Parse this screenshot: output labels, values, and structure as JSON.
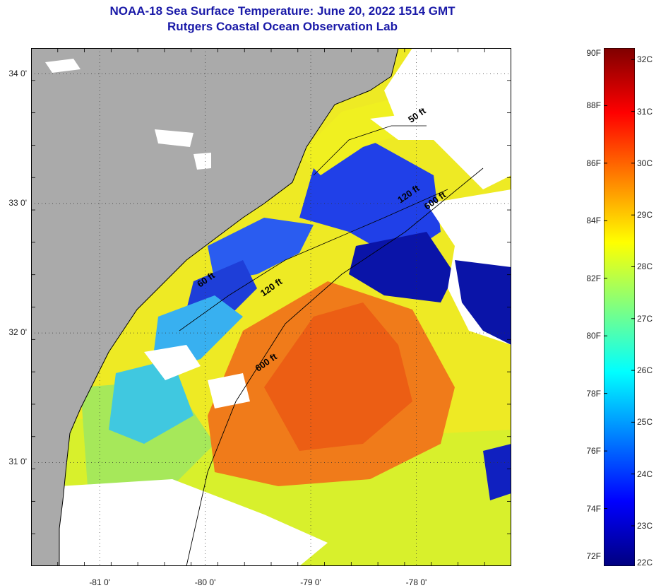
{
  "title": {
    "line1": "NOAA-18 Sea Surface Temperature:  June 20, 2022 1514 GMT",
    "line2": "Rutgers Coastal Ocean Observation Lab"
  },
  "map": {
    "lat_ticks": [
      {
        "label": "34 0'",
        "lat": 34.0
      },
      {
        "label": "33 0'",
        "lat": 33.0
      },
      {
        "label": "32 0'",
        "lat": 32.0
      },
      {
        "label": "31 0'",
        "lat": 31.0
      }
    ],
    "lon_ticks": [
      {
        "label": "-81 0'",
        "lon": -81.0
      },
      {
        "label": "-80 0'",
        "lon": -80.0
      },
      {
        "label": "-79 0'",
        "lon": -79.0
      },
      {
        "label": "-78 0'",
        "lon": -78.0
      }
    ],
    "lat_range": [
      30.2,
      34.2
    ],
    "lon_range": [
      -81.65,
      -77.1
    ],
    "contour_labels": [
      {
        "text": "50 ft",
        "lon": -78.05,
        "lat": 33.62
      },
      {
        "text": "120 ft",
        "lon": -78.15,
        "lat": 33.0
      },
      {
        "text": "600 ft",
        "lon": -77.9,
        "lat": 32.95
      },
      {
        "text": "60 ft",
        "lon": -80.05,
        "lat": 32.35
      },
      {
        "text": "120 ft",
        "lon": -79.45,
        "lat": 32.28
      },
      {
        "text": "600 ft",
        "lon": -79.5,
        "lat": 31.7
      }
    ],
    "colors": {
      "land": "#aaaaaa",
      "cloud": "#ffffff",
      "coast": "#000000"
    }
  },
  "colorbar": {
    "fahrenheit_labels": [
      "90F",
      "88F",
      "86F",
      "84F",
      "82F",
      "80F",
      "78F",
      "76F",
      "74F",
      "72F"
    ],
    "fahrenheit_values": [
      90,
      88,
      86,
      84,
      82,
      80,
      78,
      76,
      74,
      72
    ],
    "celsius_labels": [
      "32C",
      "31C",
      "30C",
      "29C",
      "28C",
      "27C",
      "26C",
      "25C",
      "24C",
      "23C",
      "22C"
    ],
    "celsius_values": [
      32,
      31,
      30,
      29,
      28,
      27,
      26,
      25,
      24,
      23,
      22
    ],
    "range_f": [
      72,
      90
    ],
    "stops": [
      "#00007f",
      "#0000ff",
      "#0080ff",
      "#00ffff",
      "#80ff80",
      "#ffff00",
      "#ff8000",
      "#ff0000",
      "#7f0000"
    ]
  }
}
